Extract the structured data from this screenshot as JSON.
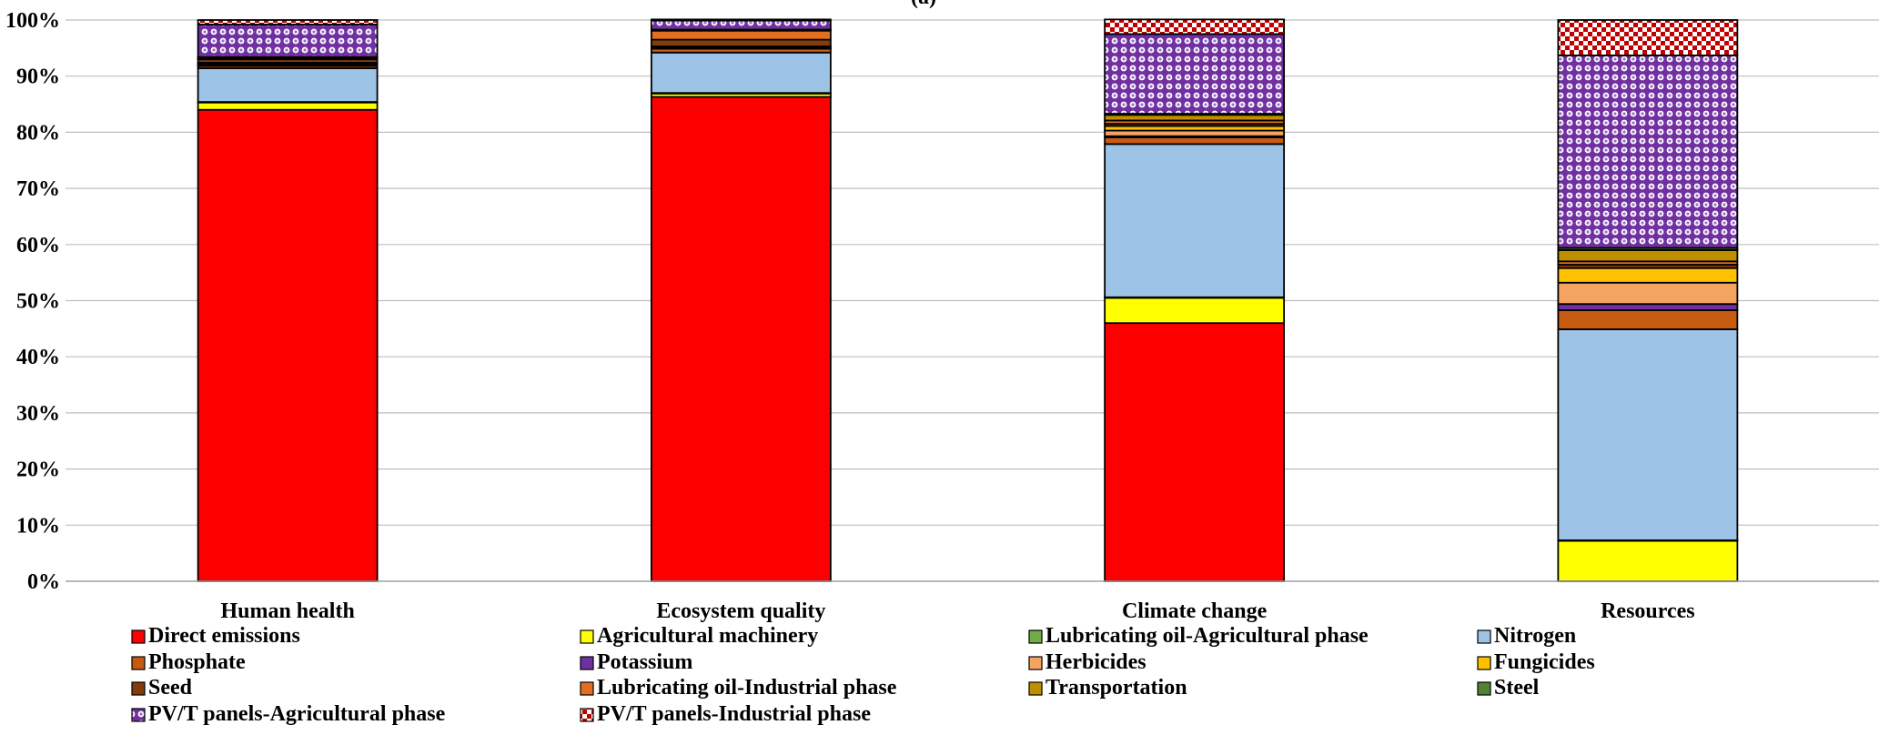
{
  "chart_data": {
    "type": "bar",
    "stacked": true,
    "normalized": true,
    "title": "(a)",
    "xlabel": "",
    "ylabel": "",
    "ylim": [
      0,
      100
    ],
    "y_ticks": [
      "0%",
      "10%",
      "20%",
      "30%",
      "40%",
      "50%",
      "60%",
      "70%",
      "80%",
      "90%",
      "100%"
    ],
    "grid": "horizontal",
    "legend_position": "bottom",
    "categories": [
      "Human health",
      "Ecosystem quality",
      "Climate change",
      "Resources"
    ],
    "series": [
      {
        "name": "Direct emissions",
        "color": "#FF0000",
        "pattern": "solid",
        "values": [
          84.0,
          86.3,
          46.0,
          0.0
        ]
      },
      {
        "name": "Agricultural machinery",
        "color": "#FFFF00",
        "pattern": "solid",
        "values": [
          1.3,
          0.6,
          4.5,
          7.2
        ]
      },
      {
        "name": "Lubricating oil-Agricultural phase",
        "color": "#70AD47",
        "pattern": "solid",
        "values": [
          0.1,
          0.1,
          0.1,
          0.1
        ]
      },
      {
        "name": "Nitrogen",
        "color": "#9DC3E6",
        "pattern": "solid",
        "values": [
          6.0,
          7.2,
          27.3,
          37.6
        ]
      },
      {
        "name": "Phosphate",
        "color": "#C55A11",
        "pattern": "solid",
        "values": [
          0.4,
          0.7,
          1.2,
          3.4
        ]
      },
      {
        "name": "Potassium",
        "color": "#7030A0",
        "pattern": "solid",
        "values": [
          0.1,
          0.1,
          0.2,
          1.1
        ]
      },
      {
        "name": "Herbicides",
        "color": "#F4A460",
        "pattern": "solid",
        "values": [
          0.3,
          0.2,
          1.0,
          3.8
        ]
      },
      {
        "name": "Fungicides",
        "color": "#FFC000",
        "pattern": "solid",
        "values": [
          0.2,
          0.1,
          0.8,
          2.6
        ]
      },
      {
        "name": "Seed",
        "color": "#843C0C",
        "pattern": "solid",
        "values": [
          0.6,
          1.2,
          0.4,
          0.6
        ]
      },
      {
        "name": "Lubricating oil-Industrial phase",
        "color": "#E07020",
        "pattern": "solid",
        "values": [
          0.2,
          1.6,
          0.6,
          0.6
        ]
      },
      {
        "name": "Transportation",
        "color": "#BF8F00",
        "pattern": "solid",
        "values": [
          0.1,
          0.1,
          1.0,
          2.0
        ]
      },
      {
        "name": "Steel",
        "color": "#548235",
        "pattern": "solid",
        "values": [
          0.1,
          0.1,
          0.2,
          0.4
        ]
      },
      {
        "name": "PV/T panels-Agricultural phase",
        "color": "#7030A0",
        "pattern": "dots",
        "values": [
          5.8,
          1.6,
          14.2,
          34.3
        ]
      },
      {
        "name": "PV/T panels-Industrial phase",
        "color": "#C00000",
        "pattern": "checker",
        "values": [
          0.8,
          0.2,
          2.6,
          6.3
        ]
      }
    ]
  }
}
